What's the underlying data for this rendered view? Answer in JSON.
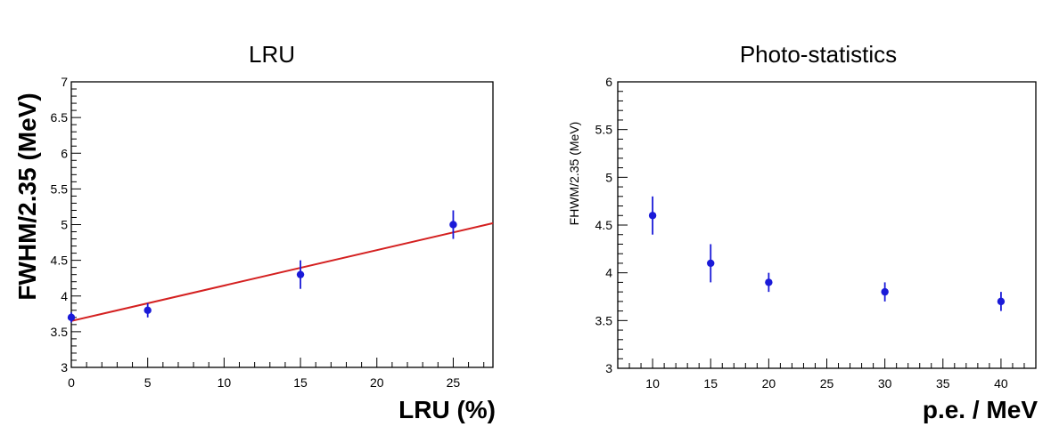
{
  "chart_data": [
    {
      "type": "scatter",
      "title": "LRU",
      "xlabel": "LRU (%)",
      "ylabel": "FWHM/2.35 (MeV)",
      "xlim": [
        0,
        27.6
      ],
      "ylim": [
        3,
        7
      ],
      "x_ticks": [
        0,
        5,
        10,
        15,
        20,
        25
      ],
      "x_tick_labels": [
        "0",
        "5",
        "10",
        "15",
        "20",
        "25"
      ],
      "y_ticks": [
        3,
        3.5,
        4,
        4.5,
        5,
        5.5,
        6,
        6.5,
        7
      ],
      "y_tick_labels": [
        "3",
        "3.5",
        "4",
        "4.5",
        "5",
        "5.5",
        "6",
        "6.5",
        "7"
      ],
      "series": [
        {
          "x": [
            0,
            5,
            15,
            25
          ],
          "y": [
            3.7,
            3.8,
            4.3,
            5.0
          ],
          "yerr": [
            0.07,
            0.1,
            0.2,
            0.2
          ],
          "color": "#1a1ad8"
        }
      ],
      "fit_line": {
        "x": [
          0,
          27.6
        ],
        "y": [
          3.65,
          5.02
        ],
        "color": "#d42020"
      },
      "grid": false
    },
    {
      "type": "scatter",
      "title": "Photo-statistics",
      "xlabel": "p.e. / MeV",
      "ylabel": "FHWM/2.35 (MeV)",
      "xlim": [
        7,
        43
      ],
      "ylim": [
        3,
        6
      ],
      "x_ticks": [
        10,
        15,
        20,
        25,
        30,
        35,
        40
      ],
      "x_tick_labels": [
        "10",
        "15",
        "20",
        "25",
        "30",
        "35",
        "40"
      ],
      "y_ticks": [
        3,
        3.5,
        4,
        4.5,
        5,
        5.5,
        6
      ],
      "y_tick_labels": [
        "3",
        "3.5",
        "4",
        "4.5",
        "5",
        "5.5",
        "6"
      ],
      "series": [
        {
          "x": [
            10,
            15,
            20,
            30,
            40
          ],
          "y": [
            4.6,
            4.1,
            3.9,
            3.8,
            3.7
          ],
          "yerr": [
            0.2,
            0.2,
            0.1,
            0.1,
            0.1
          ],
          "color": "#1a1ad8"
        }
      ],
      "grid": false
    }
  ]
}
